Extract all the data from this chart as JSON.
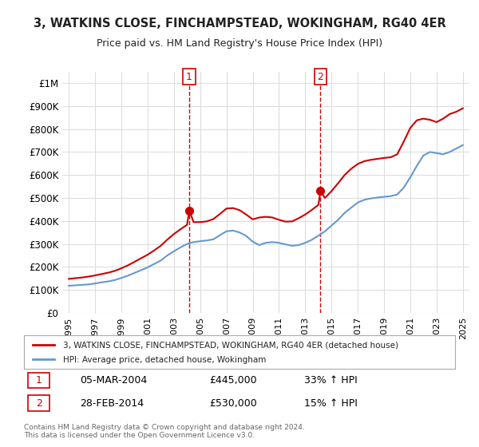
{
  "title": "3, WATKINS CLOSE, FINCHAMPSTEAD, WOKINGHAM, RG40 4ER",
  "subtitle": "Price paid vs. HM Land Registry's House Price Index (HPI)",
  "red_label": "3, WATKINS CLOSE, FINCHAMPSTEAD, WOKINGHAM, RG40 4ER (detached house)",
  "blue_label": "HPI: Average price, detached house, Wokingham",
  "footer": "Contains HM Land Registry data © Crown copyright and database right 2024.\nThis data is licensed under the Open Government Licence v3.0.",
  "sale1_date": "05-MAR-2004",
  "sale1_price": 445000,
  "sale1_hpi": "33% ↑ HPI",
  "sale2_date": "28-FEB-2014",
  "sale2_price": 530000,
  "sale2_hpi": "15% ↑ HPI",
  "ylim": [
    0,
    1050000
  ],
  "yticks": [
    0,
    100000,
    200000,
    300000,
    400000,
    500000,
    600000,
    700000,
    800000,
    900000,
    1000000
  ],
  "ytick_labels": [
    "£0",
    "£100K",
    "£200K",
    "£300K",
    "£400K",
    "£500K",
    "£600K",
    "£700K",
    "£800K",
    "£900K",
    "£1M"
  ],
  "red_color": "#cc0000",
  "blue_color": "#6699cc",
  "background_color": "#ffffff",
  "grid_color": "#dddddd",
  "sale1_x": 2004.17,
  "sale2_x": 2014.16,
  "hpi_x": [
    1995,
    1995.5,
    1996,
    1996.5,
    1997,
    1997.5,
    1998,
    1998.5,
    1999,
    1999.5,
    2000,
    2000.5,
    2001,
    2001.5,
    2002,
    2002.5,
    2003,
    2003.5,
    2004,
    2004.5,
    2005,
    2005.5,
    2006,
    2006.5,
    2007,
    2007.5,
    2008,
    2008.5,
    2009,
    2009.5,
    2010,
    2010.5,
    2011,
    2011.5,
    2012,
    2012.5,
    2013,
    2013.5,
    2014,
    2014.5,
    2015,
    2015.5,
    2016,
    2016.5,
    2017,
    2017.5,
    2018,
    2018.5,
    2019,
    2019.5,
    2020,
    2020.5,
    2021,
    2021.5,
    2022,
    2022.5,
    2023,
    2023.5,
    2024,
    2024.5,
    2025
  ],
  "hpi_y": [
    118000,
    120000,
    122000,
    124000,
    128000,
    133000,
    137000,
    143000,
    152000,
    162000,
    174000,
    186000,
    198000,
    213000,
    228000,
    250000,
    268000,
    285000,
    300000,
    308000,
    312000,
    315000,
    320000,
    338000,
    355000,
    358000,
    350000,
    335000,
    310000,
    295000,
    305000,
    308000,
    305000,
    298000,
    292000,
    295000,
    305000,
    318000,
    336000,
    355000,
    380000,
    405000,
    435000,
    458000,
    480000,
    492000,
    498000,
    502000,
    505000,
    508000,
    515000,
    545000,
    590000,
    640000,
    685000,
    700000,
    695000,
    690000,
    700000,
    715000,
    730000
  ],
  "red_x": [
    1995,
    1995.5,
    1996,
    1996.5,
    1997,
    1997.5,
    1998,
    1998.5,
    1999,
    1999.5,
    2000,
    2000.5,
    2001,
    2001.5,
    2002,
    2002.5,
    2003,
    2003.5,
    2004,
    2004.17,
    2004.5,
    2005,
    2005.5,
    2006,
    2006.5,
    2007,
    2007.5,
    2008,
    2008.5,
    2009,
    2009.5,
    2010,
    2010.5,
    2011,
    2011.5,
    2012,
    2012.5,
    2013,
    2013.5,
    2014,
    2014.16,
    2014.5,
    2015,
    2015.5,
    2016,
    2016.5,
    2017,
    2017.5,
    2018,
    2018.5,
    2019,
    2019.5,
    2020,
    2020.5,
    2021,
    2021.5,
    2022,
    2022.5,
    2023,
    2023.5,
    2024,
    2024.5,
    2025
  ],
  "red_y": [
    148000,
    151000,
    154000,
    158000,
    163000,
    169000,
    175000,
    183000,
    194000,
    207000,
    222000,
    238000,
    253000,
    272000,
    292000,
    319000,
    343000,
    364000,
    383000,
    445000,
    395000,
    395000,
    398000,
    408000,
    430000,
    454000,
    456000,
    447000,
    428000,
    407000,
    415000,
    418000,
    415000,
    405000,
    397000,
    398000,
    412000,
    428000,
    448000,
    470000,
    530000,
    500000,
    530000,
    564000,
    600000,
    627000,
    648000,
    660000,
    666000,
    670000,
    674000,
    677000,
    690000,
    745000,
    805000,
    838000,
    845000,
    840000,
    830000,
    845000,
    865000,
    875000,
    890000
  ],
  "xtick_years": [
    1995,
    1997,
    1999,
    2001,
    2003,
    2005,
    2007,
    2009,
    2011,
    2013,
    2015,
    2017,
    2019,
    2021,
    2023,
    2025
  ]
}
